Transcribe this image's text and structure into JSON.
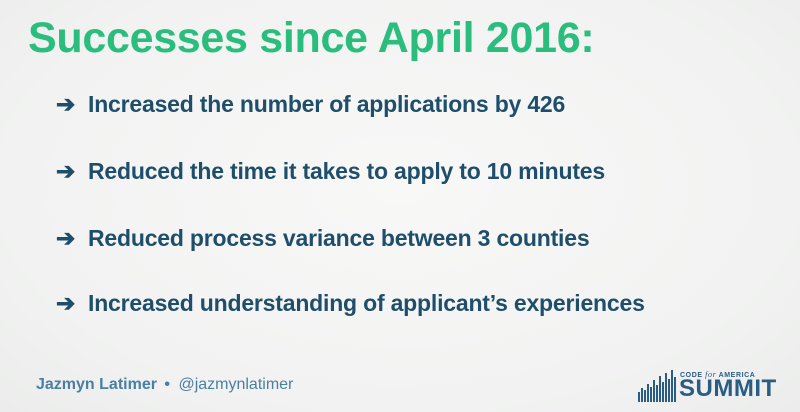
{
  "slide": {
    "title": "Successes since April 2016:",
    "bullets": [
      "Increased the number of applications by 426",
      "Reduced the time it takes to apply to 10 minutes",
      "Reduced process variance between 3 counties",
      "Increased understanding of applicant’s experiences"
    ],
    "bullet_marker": "➔"
  },
  "footer": {
    "speaker_name": "Jazmyn Latimer",
    "separator": "•",
    "handle": "@jazmynlatimer"
  },
  "logo": {
    "top_line_a": "CODE ",
    "top_line_for": "for",
    "top_line_b": " AMERICA",
    "main": "SUMMIT",
    "icon": "bar-graph-logo-icon"
  },
  "colors": {
    "title": "#2bbd7e",
    "bullet_text": "#1f4e6b",
    "footer": "#4a7fa3",
    "logo": "#2a5d84",
    "background": "#f3f4f3"
  }
}
